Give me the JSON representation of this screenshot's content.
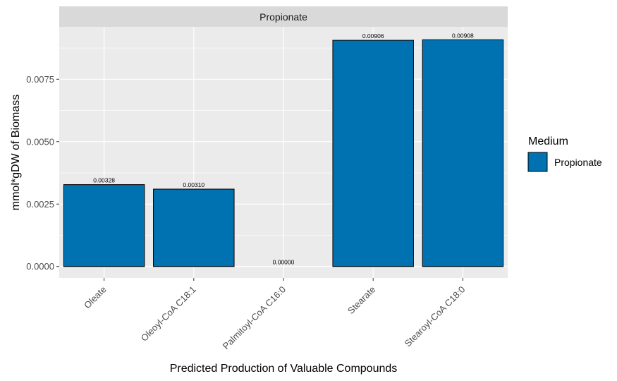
{
  "chart_data": {
    "type": "bar",
    "facet_label": "Propionate",
    "categories": [
      "Oleate",
      "Oleoyl-CoA C18:1",
      "Palmitoyl-CoA C16:0",
      "Stearate",
      "Stearoyl-CoA C18:0"
    ],
    "values": [
      0.00328,
      0.0031,
      0.0,
      0.00906,
      0.00908
    ],
    "data_labels": [
      "0.00328",
      "0.00310",
      "0.00000",
      "0.00906",
      "0.00908"
    ],
    "xlabel": "Predicted Production of Valuable Compounds",
    "ylabel": "mmol*gDW of Biomass",
    "ylim": [
      -0.00046,
      0.0096
    ],
    "yticks": [
      0,
      0.0025,
      0.005,
      0.0075
    ],
    "ytick_labels": [
      "0.0000",
      "0.0025",
      "0.0050",
      "0.0075"
    ],
    "grid": true,
    "legend": {
      "title": "Medium",
      "entries": [
        {
          "label": "Propionate",
          "color": "#0072B2"
        }
      ],
      "position": "right"
    },
    "colors": {
      "bar_fill": "#0072B2",
      "bar_stroke": "#000000",
      "panel_background": "#EBEBEB",
      "strip_background": "#D9D9D9",
      "grid": "#FFFFFF"
    }
  }
}
